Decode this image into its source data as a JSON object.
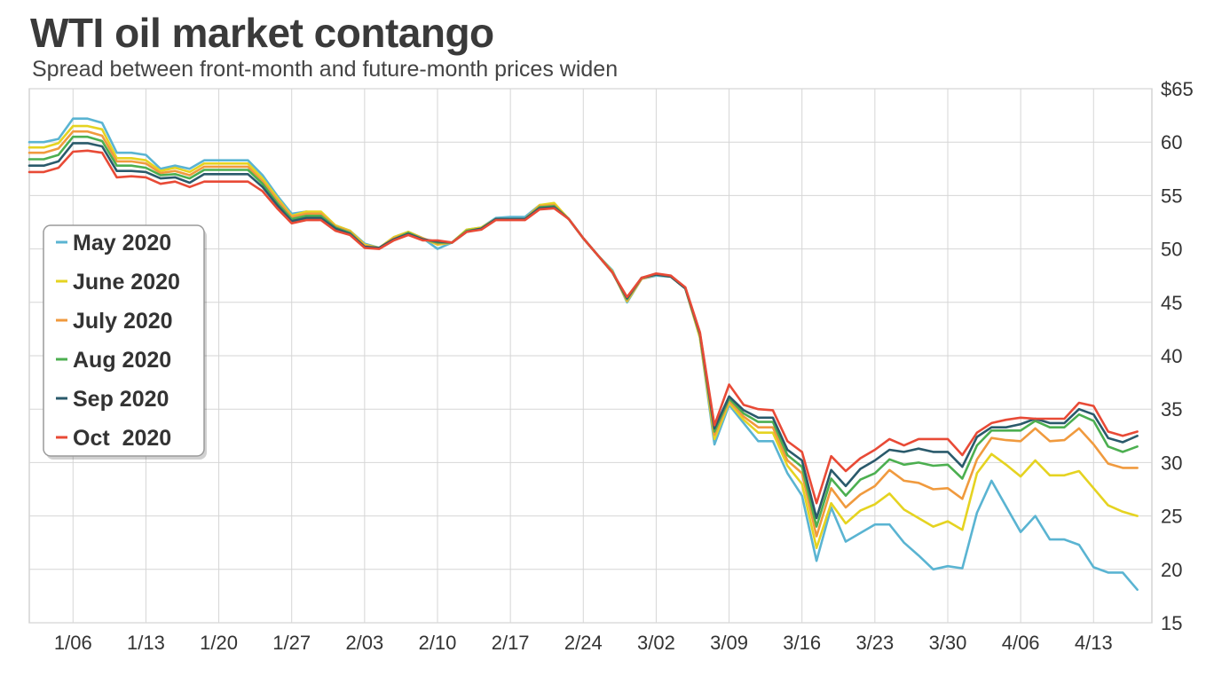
{
  "chart_data": {
    "type": "line",
    "title": "WTI oil market contango",
    "subtitle": "Spread between front-month and future-month prices widen",
    "xlabel": "",
    "ylabel": "",
    "ylim": [
      15,
      65
    ],
    "y_ticks": [
      {
        "value": 65,
        "label": "$65"
      },
      {
        "value": 60,
        "label": "60"
      },
      {
        "value": 55,
        "label": "55"
      },
      {
        "value": 50,
        "label": "50"
      },
      {
        "value": 45,
        "label": "45"
      },
      {
        "value": 40,
        "label": "40"
      },
      {
        "value": 35,
        "label": "35"
      },
      {
        "value": 30,
        "label": "30"
      },
      {
        "value": 25,
        "label": "25"
      },
      {
        "value": 20,
        "label": "20"
      },
      {
        "value": 15,
        "label": "15"
      }
    ],
    "x_ticks": [
      "1/06",
      "1/13",
      "1/20",
      "1/27",
      "2/03",
      "2/10",
      "2/17",
      "2/24",
      "3/02",
      "3/09",
      "3/16",
      "3/23",
      "3/30",
      "4/06",
      "4/13"
    ],
    "x_tick_index": [
      3,
      8,
      13,
      18,
      23,
      28,
      33,
      38,
      43,
      48,
      53,
      58,
      63,
      68,
      73
    ],
    "x_count": 78,
    "grid": true,
    "legend_position": "left",
    "series": [
      {
        "name": "May 2020",
        "color": "#5ab4d2",
        "values": [
          60,
          60,
          60.3,
          62.2,
          62.2,
          61.8,
          59,
          59,
          58.8,
          57.5,
          57.8,
          57.5,
          58.3,
          58.3,
          58.3,
          58.3,
          56.9,
          55,
          53.3,
          53.5,
          53.3,
          52.2,
          51.7,
          50.5,
          50.1,
          51.1,
          51.6,
          51,
          50,
          50.6,
          51.8,
          52,
          52.9,
          53,
          53,
          54.1,
          54.2,
          52.8,
          51,
          49.4,
          48,
          45,
          47.2,
          47.5,
          47.4,
          46.3,
          41.7,
          31.7,
          35.4,
          33.7,
          32,
          32,
          29,
          26.9,
          20.8,
          25.8,
          22.6,
          23.4,
          24.2,
          24.2,
          22.5,
          21.3,
          20,
          20.3,
          20.1,
          25.3,
          28.3,
          25.9,
          23.5,
          25,
          22.8,
          22.8,
          22.3,
          20.2,
          19.7,
          19.7,
          18.1
        ]
      },
      {
        "name": "June 2020",
        "color": "#e5d321",
        "values": [
          59.5,
          59.5,
          59.9,
          61.5,
          61.5,
          61.2,
          58.5,
          58.5,
          58.3,
          57.3,
          57.6,
          57.2,
          58,
          58,
          58,
          58,
          56.6,
          54.8,
          53.1,
          53.5,
          53.5,
          52.2,
          51.7,
          50.4,
          50.1,
          51.1,
          51.6,
          51,
          50.4,
          50.6,
          51.8,
          52,
          52.8,
          52.8,
          52.8,
          54.1,
          54.3,
          52.8,
          51,
          49.4,
          47.9,
          45.1,
          47.2,
          47.6,
          47.4,
          46.3,
          41.7,
          32.2,
          35.6,
          34,
          32.8,
          32.8,
          29.7,
          28,
          22,
          26.2,
          24.3,
          25.5,
          26.1,
          27.1,
          25.6,
          24.8,
          24,
          24.5,
          23.7,
          29,
          30.8,
          29.8,
          28.7,
          30.2,
          28.8,
          28.8,
          29.2,
          27.6,
          26,
          25.4,
          25
        ]
      },
      {
        "name": "July 2020",
        "color": "#f09a3e",
        "values": [
          59,
          59,
          59.4,
          61,
          61,
          60.6,
          58.2,
          58.2,
          58,
          57.1,
          57.3,
          56.9,
          57.7,
          57.7,
          57.7,
          57.7,
          56.3,
          54.6,
          53,
          53.3,
          53.3,
          52.1,
          51.6,
          50.3,
          50.1,
          51,
          51.5,
          51,
          50.5,
          50.6,
          51.7,
          51.9,
          52.8,
          52.8,
          52.8,
          54,
          54.1,
          52.8,
          51,
          49.4,
          47.8,
          45.2,
          47.2,
          47.6,
          47.4,
          46.3,
          41.9,
          32.6,
          35.8,
          34.3,
          33.3,
          33.3,
          30.2,
          29,
          23.1,
          27.6,
          25.8,
          27,
          27.8,
          29.3,
          28.3,
          28.1,
          27.5,
          27.6,
          26.6,
          30.3,
          32.3,
          32.1,
          32,
          33.2,
          32,
          32.1,
          33.2,
          31.7,
          29.9,
          29.5,
          29.5
        ]
      },
      {
        "name": "Aug 2020",
        "color": "#4caf50",
        "values": [
          58.4,
          58.4,
          58.8,
          60.5,
          60.5,
          60.1,
          57.8,
          57.8,
          57.6,
          56.9,
          57,
          56.6,
          57.4,
          57.4,
          57.4,
          57.4,
          56.1,
          54.3,
          52.8,
          53.1,
          53.1,
          52,
          51.5,
          50.2,
          50.1,
          50.9,
          51.5,
          50.9,
          50.6,
          50.6,
          51.7,
          51.9,
          52.8,
          52.8,
          52.8,
          53.9,
          54,
          52.8,
          51,
          49.4,
          47.8,
          45.3,
          47.3,
          47.6,
          47.4,
          46.3,
          42,
          32.9,
          36,
          34.6,
          33.8,
          33.8,
          30.7,
          29.6,
          24,
          28.5,
          26.9,
          28.4,
          29,
          30.3,
          29.8,
          30,
          29.7,
          29.8,
          28.5,
          31.6,
          33,
          33,
          33,
          33.9,
          33.3,
          33.3,
          34.5,
          33.9,
          31.5,
          31,
          31.5
        ]
      },
      {
        "name": "Sep 2020",
        "color": "#2a5a6b",
        "values": [
          57.8,
          57.8,
          58.2,
          59.9,
          59.9,
          59.6,
          57.3,
          57.3,
          57.2,
          56.6,
          56.7,
          56.2,
          57,
          57,
          57,
          57,
          55.8,
          54.1,
          52.6,
          52.9,
          52.9,
          51.9,
          51.4,
          50.2,
          50.1,
          50.9,
          51.4,
          50.9,
          50.7,
          50.6,
          51.6,
          51.9,
          52.8,
          52.8,
          52.8,
          53.8,
          53.9,
          52.8,
          51,
          49.4,
          47.8,
          45.4,
          47.3,
          47.6,
          47.4,
          46.3,
          42.1,
          33.2,
          36.2,
          34.9,
          34.2,
          34.2,
          31.2,
          30.2,
          24.8,
          29.3,
          27.8,
          29.4,
          30.2,
          31.2,
          31,
          31.3,
          31,
          31,
          29.6,
          32.4,
          33.3,
          33.3,
          33.6,
          34.1,
          33.7,
          33.7,
          35,
          34.5,
          32.3,
          31.9,
          32.5
        ]
      },
      {
        "name": "Oct  2020",
        "color": "#e84a36",
        "values": [
          57.2,
          57.2,
          57.6,
          59.1,
          59.2,
          59,
          56.7,
          56.8,
          56.7,
          56.1,
          56.3,
          55.8,
          56.3,
          56.3,
          56.3,
          56.3,
          55.4,
          53.8,
          52.4,
          52.7,
          52.7,
          51.7,
          51.3,
          50.1,
          50,
          50.8,
          51.3,
          50.8,
          50.8,
          50.6,
          51.6,
          51.8,
          52.7,
          52.7,
          52.7,
          53.7,
          53.8,
          52.8,
          51,
          49.4,
          47.8,
          45.5,
          47.3,
          47.7,
          47.5,
          46.4,
          42.2,
          33.5,
          37.3,
          35.4,
          35,
          34.9,
          32,
          31,
          26.2,
          30.6,
          29.2,
          30.4,
          31.2,
          32.2,
          31.6,
          32.2,
          32.2,
          32.2,
          30.7,
          32.8,
          33.7,
          34,
          34.2,
          34.1,
          34.1,
          34.1,
          35.6,
          35.3,
          32.9,
          32.5,
          32.9
        ]
      }
    ]
  }
}
